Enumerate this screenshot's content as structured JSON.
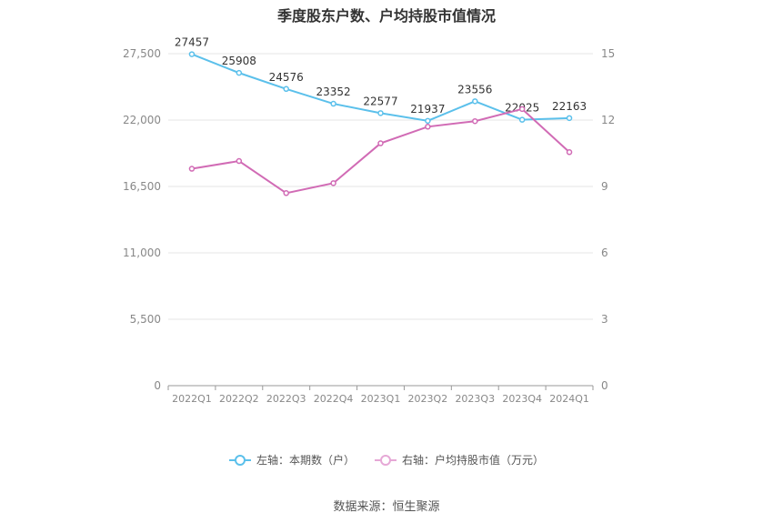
{
  "chart_data": {
    "type": "line",
    "title": "季度股东户数、户均持股市值情况",
    "categories": [
      "2022Q1",
      "2022Q2",
      "2022Q3",
      "2022Q4",
      "2023Q1",
      "2023Q2",
      "2023Q3",
      "2023Q4",
      "2024Q1"
    ],
    "y_left": {
      "ticks": [
        "0",
        "5,500",
        "11,000",
        "16,500",
        "22,000",
        "27,500"
      ],
      "range": [
        0,
        27500
      ]
    },
    "y_right": {
      "ticks": [
        "0",
        "3",
        "6",
        "9",
        "12",
        "15"
      ],
      "range": [
        0,
        15
      ]
    },
    "series": [
      {
        "name": "左轴：本期数（户）",
        "axis": "left",
        "color": "#5bc0eb",
        "values": [
          27457,
          25908,
          24576,
          23352,
          22577,
          21937,
          23556,
          22025,
          22163
        ],
        "labels": [
          "27457",
          "25908",
          "24576",
          "23352",
          "22577",
          "21937",
          "23556",
          "22025",
          "22163"
        ]
      },
      {
        "name": "右轴：户均持股市值（万元）",
        "axis": "right",
        "color": "#d16bb5",
        "values": [
          9.8,
          10.15,
          8.7,
          9.15,
          10.95,
          11.7,
          11.95,
          12.5,
          10.55
        ]
      }
    ],
    "grid": true,
    "legend_position": "bottom"
  },
  "source": "数据来源：恒生聚源"
}
